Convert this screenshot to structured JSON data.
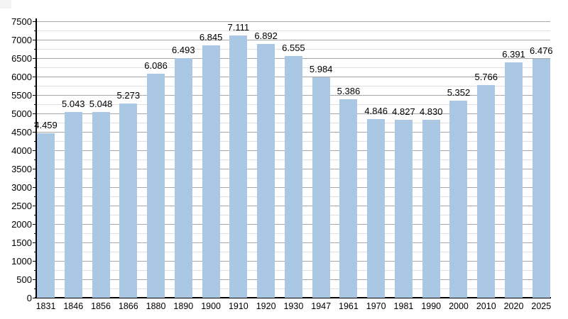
{
  "page": {
    "background": "#ffffff"
  },
  "chart_data": {
    "type": "bar",
    "title": "",
    "xlabel": "",
    "ylabel": "",
    "categories": [
      "1831",
      "1846",
      "1856",
      "1866",
      "1880",
      "1890",
      "1900",
      "1910",
      "1920",
      "1930",
      "1947",
      "1961",
      "1970",
      "1981",
      "1990",
      "2000",
      "2010",
      "2020",
      "2025"
    ],
    "values": [
      4459,
      5043,
      5048,
      5273,
      6086,
      6493,
      6845,
      7111,
      6892,
      6555,
      5984,
      5386,
      4846,
      4827,
      4830,
      5352,
      5766,
      6391,
      6476
    ],
    "value_labels": [
      "4.459",
      "5.043",
      "5.048",
      "5.273",
      "6.086",
      "6.493",
      "6.845",
      "7.111",
      "6.892",
      "6.555",
      "5.984",
      "5.386",
      "4.846",
      "4.827",
      "4.830",
      "5.352",
      "5.766",
      "6.391",
      "6.476"
    ],
    "ylim": [
      0,
      7500
    ],
    "y_major_step": 500,
    "y_minor_step": 250,
    "y_tick_labels": [
      "0",
      "500",
      "1000",
      "1500",
      "2000",
      "2500",
      "3000",
      "3500",
      "4000",
      "4500",
      "5000",
      "5500",
      "6000",
      "6500",
      "7000",
      "7500"
    ],
    "grid": "major-and-minor",
    "legend": "none",
    "colors": {
      "bar_fill": "#aac7e4",
      "axis": "#000000",
      "major_grid": "#a6a6a6",
      "minor_grid": "#e0e0e0",
      "text": "#000000"
    }
  }
}
